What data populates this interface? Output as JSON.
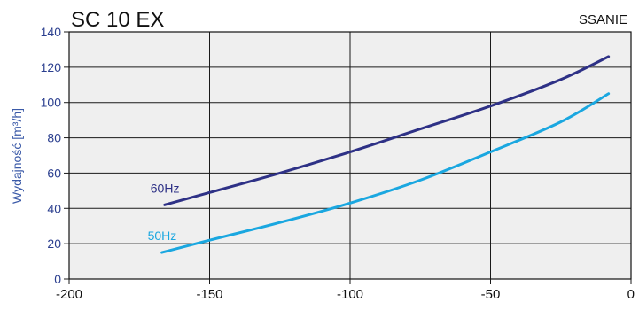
{
  "chart_data": {
    "type": "line",
    "title": "SC 10 EX",
    "subtitle": "SSANIE",
    "ylabel": "Wydajność [m³/h]",
    "xlabel": "",
    "xlim": [
      -200,
      0
    ],
    "ylim": [
      0,
      140
    ],
    "xticks": [
      -200,
      -150,
      -100,
      -50,
      0
    ],
    "yticks": [
      0,
      20,
      40,
      60,
      80,
      100,
      120,
      140
    ],
    "grid": true,
    "background": "#efefef",
    "series": [
      {
        "name": "60Hz",
        "color": "#2e3186",
        "x": [
          -166,
          -150,
          -125,
          -100,
          -75,
          -50,
          -25,
          -8
        ],
        "y": [
          42,
          49,
          60,
          72,
          85,
          98,
          113,
          126
        ]
      },
      {
        "name": "50Hz",
        "color": "#1aa7e0",
        "x": [
          -167,
          -150,
          -125,
          -100,
          -75,
          -50,
          -25,
          -8
        ],
        "y": [
          15,
          22,
          32,
          43,
          56,
          72,
          89,
          105
        ]
      }
    ]
  }
}
